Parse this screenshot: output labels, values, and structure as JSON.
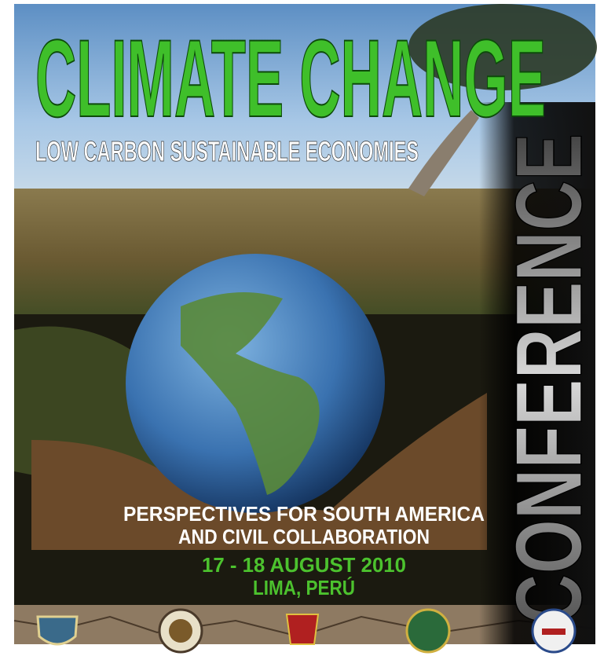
{
  "poster": {
    "title": "CLIMATE CHANGE",
    "subtitle": "LOW CARBON SUSTAINABLE ECONOMIES",
    "side_label": "CONFERENCE",
    "theme_lines": [
      "PERSPECTIVES FOR SOUTH AMERICA",
      "AND CIVIL COLLABORATION"
    ],
    "date": "17 - 18 AUGUST 2010",
    "location": "LIMA, PERÚ"
  }
}
